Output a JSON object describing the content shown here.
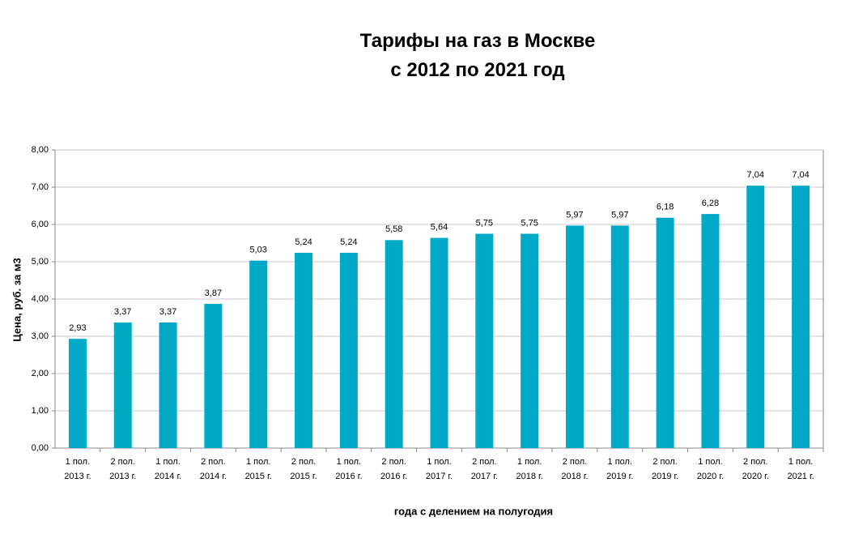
{
  "chart_data": {
    "type": "bar",
    "title": "Тарифы на газ в Москве\nс 2012 по 2021 год",
    "y_label": "Цена, руб. за  м3",
    "x_label": "года с делением  на полугодия",
    "categories": [
      "1 пол.\n2013 г.",
      "2 пол.\n2013 г.",
      "1 пол.\n2014 г.",
      "2 пол.\n2014 г.",
      "1 пол.\n2015 г.",
      "2 пол.\n2015 г.",
      "1 пол.\n2016 г.",
      "2 пол.\n2016 г.",
      "1 пол.\n2017 г.",
      "2 пол.\n2017 г.",
      "1 пол.\n2018 г.",
      "2 пол.\n2018 г.",
      "1 пол.\n2019 г.",
      "2 пол.\n2019 г.",
      "1 пол.\n2020 г.",
      "2 пол.\n2020 г.",
      "1 пол.\n2021 г."
    ],
    "values": [
      2.93,
      3.37,
      3.37,
      3.87,
      5.03,
      5.24,
      5.24,
      5.58,
      5.64,
      5.75,
      5.75,
      5.97,
      5.97,
      6.18,
      6.28,
      7.04,
      7.04
    ],
    "value_labels": [
      "2,93",
      "3,37",
      "3,37",
      "3,87",
      "5,03",
      "5,24",
      "5,24",
      "5,58",
      "5,64",
      "5,75",
      "5,75",
      "5,97",
      "5,97",
      "6,18",
      "6,28",
      "7,04",
      "7,04"
    ],
    "color": "#00a9c6",
    "ylim": [
      0,
      8
    ],
    "yticks": [
      {
        "value": 0,
        "label": "0,00"
      },
      {
        "value": 1,
        "label": "1,00"
      },
      {
        "value": 2,
        "label": "2,00"
      },
      {
        "value": 3,
        "label": "3,00"
      },
      {
        "value": 4,
        "label": "4,00"
      },
      {
        "value": 5,
        "label": "5,00"
      },
      {
        "value": 6,
        "label": "6,00"
      },
      {
        "value": 7,
        "label": "7,00"
      },
      {
        "value": 8,
        "label": "8,00"
      }
    ],
    "grid": true
  }
}
